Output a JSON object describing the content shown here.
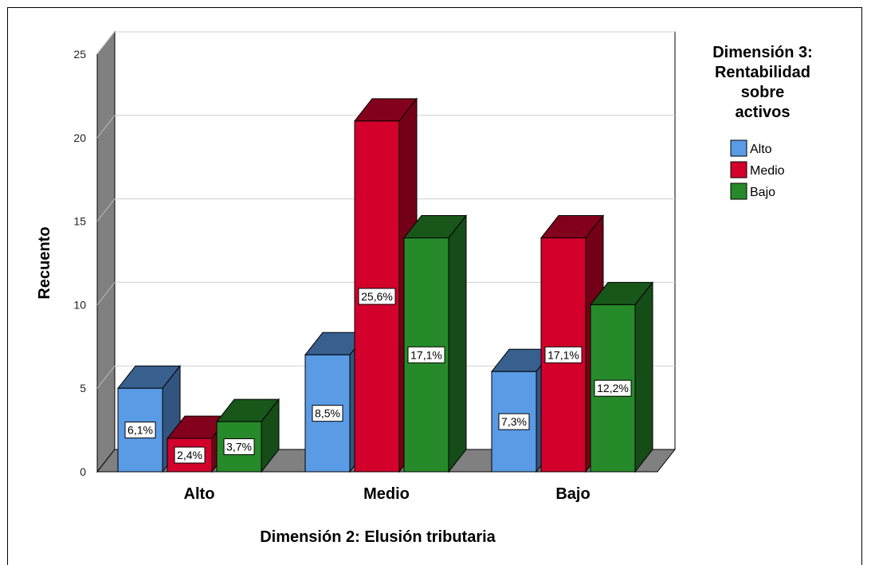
{
  "chart_data": {
    "type": "bar",
    "categories": [
      "Alto",
      "Medio",
      "Bajo"
    ],
    "series": [
      {
        "name": "Alto",
        "color": "#5a9be6",
        "values": [
          5,
          7,
          6
        ],
        "labels": [
          "6,1%",
          "8,5%",
          "7,3%"
        ]
      },
      {
        "name": "Medio",
        "color": "#d2002b",
        "values": [
          2,
          21,
          14
        ],
        "labels": [
          "2,4%",
          "25,6%",
          "17,1%"
        ]
      },
      {
        "name": "Bajo",
        "color": "#268a2a",
        "values": [
          3,
          14,
          10
        ],
        "labels": [
          "3,7%",
          "17,1%",
          "12,2%"
        ]
      }
    ],
    "xlabel": "Dimensión 2: Elusión tributaria",
    "ylabel": "Recuento",
    "ylim": [
      0,
      25
    ],
    "yticks": [
      0,
      5,
      10,
      15,
      20,
      25
    ],
    "grid": true,
    "legend_title": [
      "Dimensión 3:",
      "Rentabilidad",
      "sobre",
      "activos"
    ],
    "legend_position": "right",
    "style": "3d"
  }
}
